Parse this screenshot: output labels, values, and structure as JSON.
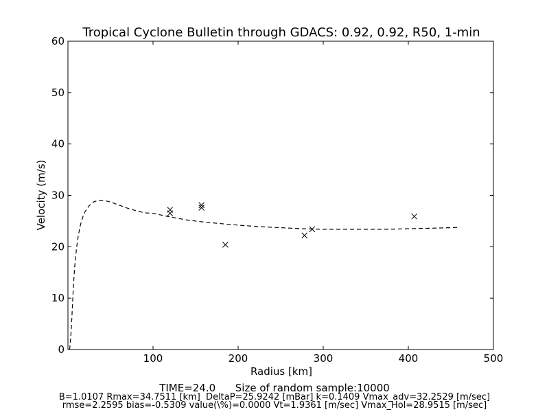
{
  "chart_data": {
    "type": "scatter",
    "title": "Tropical Cyclone Bulletin through GDACS: 0.92, 0.92, R50, 1-min",
    "xlabel": "Radius [km]",
    "ylabel": "Velocity (m/s)",
    "xlim": [
      0,
      500
    ],
    "ylim": [
      0,
      60
    ],
    "xticks": [
      100,
      200,
      300,
      400,
      500
    ],
    "xtick_labels": [
      "100",
      "200",
      "300",
      "400",
      "500"
    ],
    "yticks": [
      0,
      10,
      20,
      30,
      40,
      50,
      60
    ],
    "ytick_labels": [
      "0",
      "10",
      "20",
      "30",
      "40",
      "50",
      "60"
    ],
    "grid": false,
    "series": [
      {
        "kind": "line",
        "style": "dashed",
        "color": "#000000",
        "x": [
          2,
          3,
          4,
          5,
          6,
          7,
          8,
          10,
          12,
          14,
          16,
          18,
          20,
          25,
          30,
          35,
          40,
          45,
          50,
          60,
          70,
          80,
          90,
          100,
          120,
          140,
          160,
          180,
          200,
          225,
          250,
          275,
          300,
          325,
          350,
          375,
          400,
          425,
          450,
          460
        ],
        "y": [
          0.0,
          1.8,
          4.2,
          7.5,
          10.8,
          13.8,
          16.2,
          19.6,
          22.0,
          23.8,
          25.0,
          26.0,
          26.8,
          28.0,
          28.7,
          29.0,
          29.0,
          28.9,
          28.7,
          28.1,
          27.5,
          27.0,
          26.6,
          26.5,
          25.8,
          25.2,
          24.8,
          24.5,
          24.2,
          23.9,
          23.7,
          23.5,
          23.4,
          23.4,
          23.4,
          23.4,
          23.5,
          23.6,
          23.7,
          23.8
        ]
      },
      {
        "kind": "scatter",
        "marker": "x",
        "color": "#000000",
        "x": [
          120,
          120,
          157,
          157,
          185,
          278,
          287,
          407
        ],
        "y": [
          27.2,
          26.5,
          28.1,
          27.6,
          20.4,
          22.2,
          23.4,
          25.9
        ]
      }
    ]
  },
  "footer": {
    "line1": "TIME=24.0      Size of random sample:10000",
    "line2": "B=1.0107 Rmax=34.7511 [km]  DeltaP=25.9242 [mBar] k=0.1409 Vmax_adv=32.2529 [m/sec]",
    "line3": "rmse=2.2595 bias=-0.5309 value(\\%)=0.0000 Vt=1.9361 [m/sec] Vmax_Hol=28.9515 [m/sec]"
  }
}
